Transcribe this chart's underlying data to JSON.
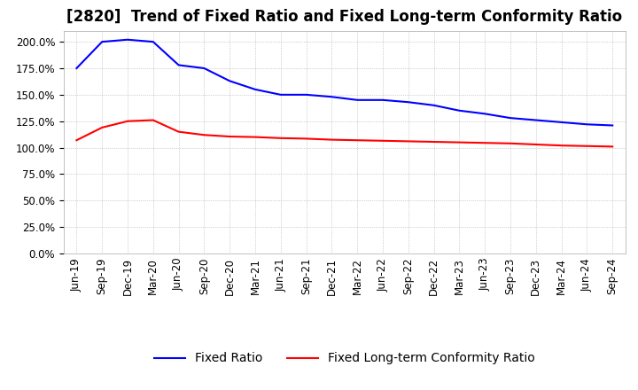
{
  "title": "[2820]  Trend of Fixed Ratio and Fixed Long-term Conformity Ratio",
  "x_labels": [
    "Jun-19",
    "Sep-19",
    "Dec-19",
    "Mar-20",
    "Jun-20",
    "Sep-20",
    "Dec-20",
    "Mar-21",
    "Jun-21",
    "Sep-21",
    "Dec-21",
    "Mar-22",
    "Jun-22",
    "Sep-22",
    "Dec-22",
    "Mar-23",
    "Jun-23",
    "Sep-23",
    "Dec-23",
    "Mar-24",
    "Jun-24",
    "Sep-24"
  ],
  "fixed_ratio": [
    175.0,
    200.0,
    202.0,
    200.0,
    178.0,
    175.0,
    163.0,
    155.0,
    150.0,
    150.0,
    148.0,
    145.0,
    145.0,
    143.0,
    140.0,
    135.0,
    132.0,
    128.0,
    126.0,
    124.0,
    122.0,
    121.0
  ],
  "fixed_lt_ratio": [
    107.0,
    119.0,
    125.0,
    126.0,
    115.0,
    112.0,
    110.5,
    110.0,
    109.0,
    108.5,
    107.5,
    107.0,
    106.5,
    106.0,
    105.5,
    105.0,
    104.5,
    104.0,
    103.0,
    102.0,
    101.5,
    101.0
  ],
  "fixed_ratio_color": "#0000FF",
  "fixed_lt_ratio_color": "#FF0000",
  "ylim": [
    0.0,
    210.0
  ],
  "yticks": [
    0.0,
    25.0,
    50.0,
    75.0,
    100.0,
    125.0,
    150.0,
    175.0,
    200.0
  ],
  "grid_color": "#AAAAAA",
  "background_color": "#FFFFFF",
  "legend_fixed_ratio": "Fixed Ratio",
  "legend_fixed_lt_ratio": "Fixed Long-term Conformity Ratio",
  "title_fontsize": 12,
  "tick_fontsize": 8.5,
  "legend_fontsize": 10
}
